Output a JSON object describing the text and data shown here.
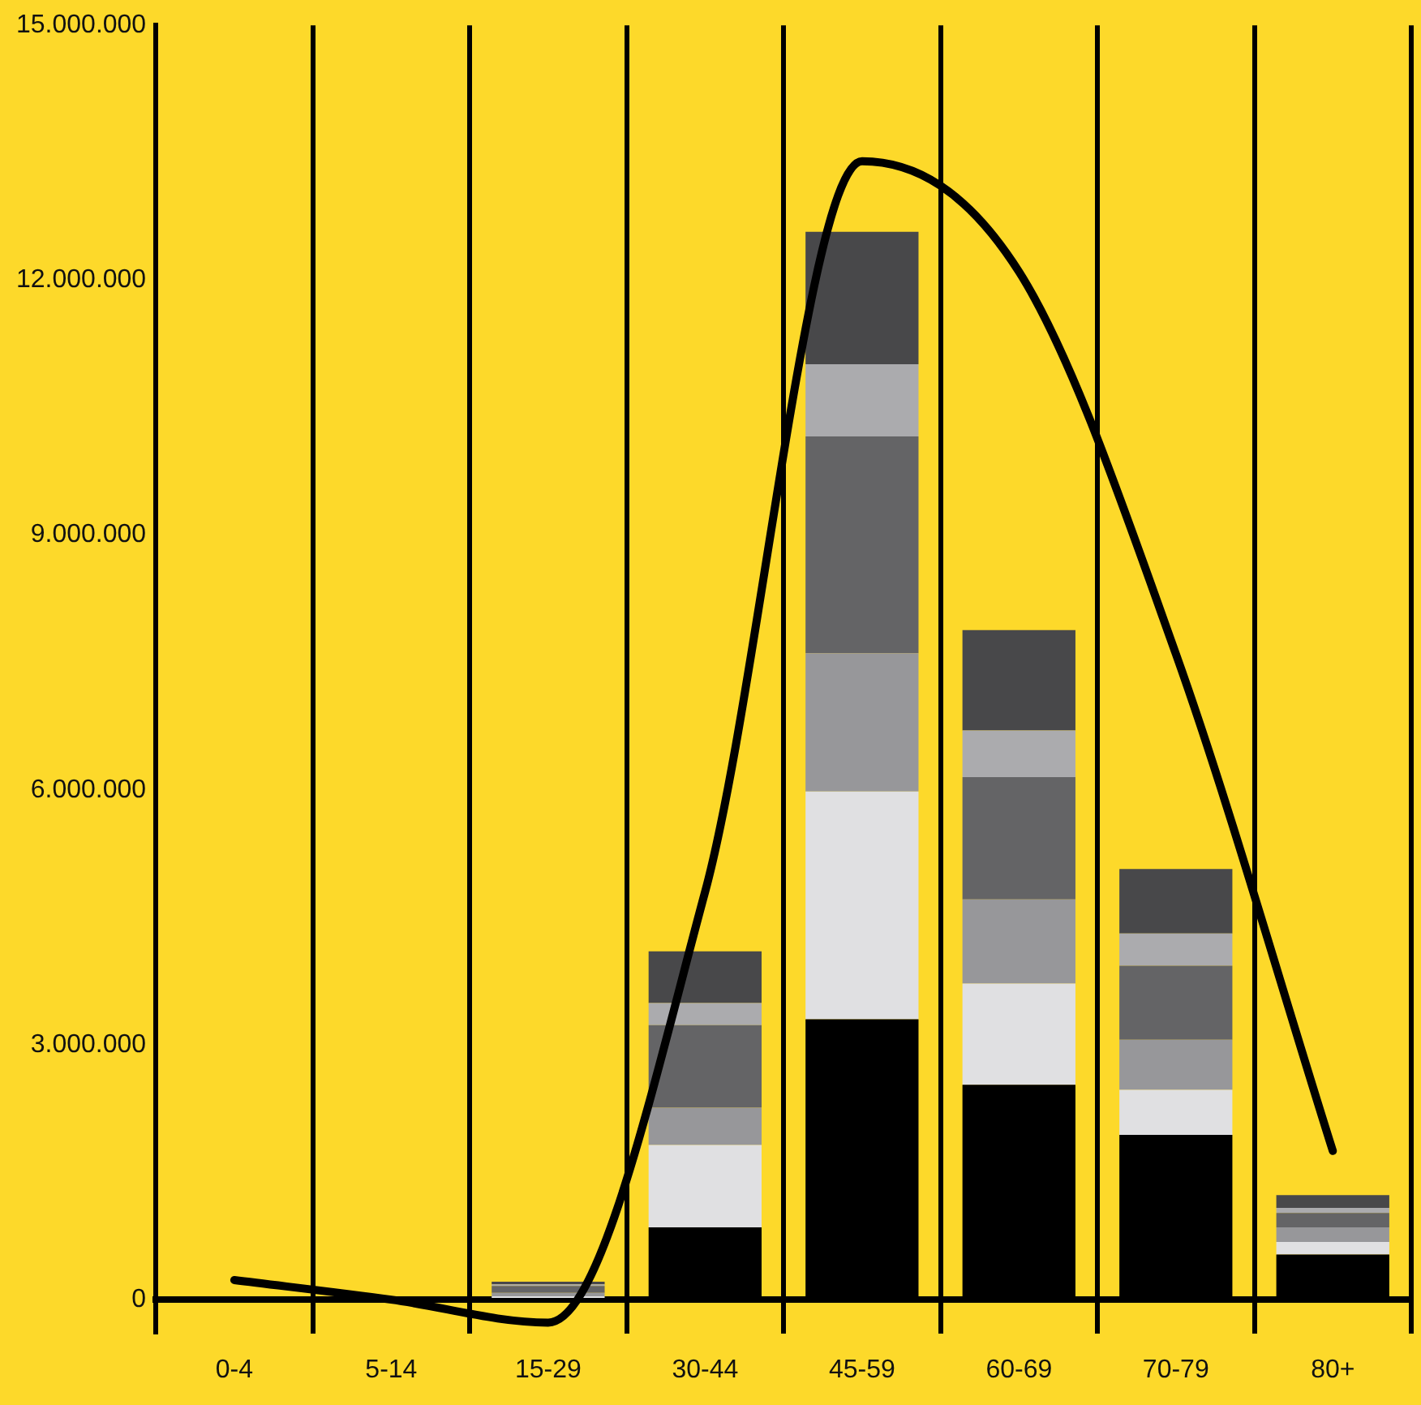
{
  "chart_data": {
    "type": "bar",
    "stacked": true,
    "grid": "x",
    "legend": false,
    "categories": [
      "0-4",
      "5-14",
      "15-29",
      "30-44",
      "45-59",
      "60-69",
      "70-79",
      "80+"
    ],
    "series": [
      {
        "color": "#000000",
        "values": [
          0,
          0,
          20000.0,
          850000,
          3300000,
          2530000,
          1940000,
          530000
        ]
      },
      {
        "color": "#e0e0e2",
        "values": [
          0,
          0,
          20000.0,
          970000,
          2680000,
          1190000,
          530000,
          150000
        ]
      },
      {
        "color": "#97979a",
        "values": [
          0,
          0,
          40000.0,
          440000,
          1630000,
          990000,
          590000,
          170000
        ]
      },
      {
        "color": "#646466",
        "values": [
          0,
          0,
          80000.0,
          970000,
          2550000,
          1440000,
          870000,
          170000
        ]
      },
      {
        "color": "#ababae",
        "values": [
          0,
          0,
          20000.0,
          260000,
          850000,
          550000,
          380000,
          60000
        ]
      },
      {
        "color": "#48484a",
        "values": [
          0,
          0,
          30000.0,
          610000,
          1560000,
          1180000,
          760000,
          150000
        ]
      },
      {
        "type": "line",
        "color": "#000000",
        "marker": "none",
        "values": [
          230000,
          0,
          -270000,
          4800000,
          13400000,
          12100000,
          7600000,
          1750000
        ]
      }
    ],
    "ylim": [
      -400000,
      15000000
    ],
    "yticks": [
      {
        "value": 0,
        "label": "0"
      },
      {
        "value": 3000000,
        "label": "3.000.000"
      },
      {
        "value": 6000000,
        "label": "6.000.000"
      },
      {
        "value": 9000000,
        "label": "9.000.000"
      },
      {
        "value": 12000000,
        "label": "12.000.000"
      },
      {
        "value": 15000000,
        "label": "15.000.000"
      }
    ]
  }
}
